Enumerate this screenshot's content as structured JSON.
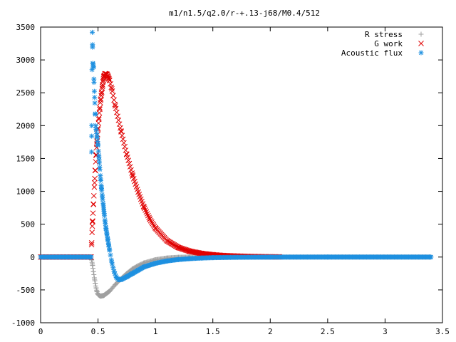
{
  "chart_data": {
    "type": "scatter",
    "title": "m1/n1.5/q2.0/r-+.13-j68/M0.4/512",
    "xlabel": "",
    "ylabel": "",
    "xlim": [
      0,
      3.5
    ],
    "ylim": [
      -1000,
      3500
    ],
    "x_ticks": [
      "0",
      "0.5",
      "1",
      "1.5",
      "2",
      "2.5",
      "3",
      "3.5"
    ],
    "y_ticks": [
      "-1000",
      "-500",
      "0",
      "500",
      "1000",
      "1500",
      "2000",
      "2500",
      "3000",
      "3500"
    ],
    "grid": false,
    "legend": "top-right",
    "series": [
      {
        "name": "R stress",
        "marker": "+",
        "color": "#a0a0a0",
        "x_range": [
          0,
          3.4
        ],
        "points": [
          [
            0,
            0
          ],
          [
            0.44,
            0
          ],
          [
            0.45,
            -100
          ],
          [
            0.46,
            -220
          ],
          [
            0.47,
            -340
          ],
          [
            0.48,
            -440
          ],
          [
            0.49,
            -520
          ],
          [
            0.5,
            -570
          ],
          [
            0.52,
            -595
          ],
          [
            0.55,
            -585
          ],
          [
            0.6,
            -520
          ],
          [
            0.65,
            -420
          ],
          [
            0.7,
            -330
          ],
          [
            0.75,
            -250
          ],
          [
            0.8,
            -180
          ],
          [
            0.85,
            -130
          ],
          [
            0.9,
            -90
          ],
          [
            1.0,
            -40
          ],
          [
            1.1,
            -15
          ],
          [
            1.2,
            -4
          ],
          [
            1.3,
            0
          ],
          [
            3.4,
            0
          ]
        ]
      },
      {
        "name": "G work",
        "marker": "x",
        "color": "#e00000",
        "x_range": [
          0,
          2.08
        ],
        "points": [
          [
            0,
            0
          ],
          [
            0.44,
            0
          ],
          [
            0.45,
            470
          ],
          [
            0.46,
            800
          ],
          [
            0.47,
            1130
          ],
          [
            0.48,
            1450
          ],
          [
            0.49,
            1720
          ],
          [
            0.5,
            1960
          ],
          [
            0.52,
            2350
          ],
          [
            0.54,
            2620
          ],
          [
            0.55,
            2740
          ],
          [
            0.56,
            2790
          ],
          [
            0.58,
            2780
          ],
          [
            0.6,
            2690
          ],
          [
            0.62,
            2560
          ],
          [
            0.65,
            2300
          ],
          [
            0.7,
            1920
          ],
          [
            0.75,
            1560
          ],
          [
            0.8,
            1250
          ],
          [
            0.85,
            990
          ],
          [
            0.9,
            760
          ],
          [
            0.95,
            580
          ],
          [
            1.0,
            440
          ],
          [
            1.1,
            250
          ],
          [
            1.2,
            145
          ],
          [
            1.3,
            88
          ],
          [
            1.4,
            55
          ],
          [
            1.5,
            35
          ],
          [
            1.6,
            22
          ],
          [
            1.8,
            10
          ],
          [
            2.0,
            4
          ],
          [
            2.08,
            3
          ]
        ]
      },
      {
        "name": "Acoustic flux",
        "marker": "*",
        "color": "#1e90e0",
        "x_range": [
          0,
          3.4
        ],
        "points": [
          [
            0,
            0
          ],
          [
            0.44,
            0
          ],
          [
            0.445,
            2000
          ],
          [
            0.45,
            3420
          ],
          [
            0.455,
            2950
          ],
          [
            0.46,
            2900
          ],
          [
            0.465,
            2660
          ],
          [
            0.47,
            2430
          ],
          [
            0.48,
            2000
          ],
          [
            0.5,
            1700
          ],
          [
            0.51,
            1480
          ],
          [
            0.52,
            1240
          ],
          [
            0.53,
            1050
          ],
          [
            0.54,
            880
          ],
          [
            0.55,
            730
          ],
          [
            0.56,
            560
          ],
          [
            0.57,
            430
          ],
          [
            0.58,
            320
          ],
          [
            0.6,
            110
          ],
          [
            0.62,
            -80
          ],
          [
            0.64,
            -220
          ],
          [
            0.66,
            -310
          ],
          [
            0.68,
            -345
          ],
          [
            0.7,
            -345
          ],
          [
            0.75,
            -300
          ],
          [
            0.8,
            -250
          ],
          [
            0.85,
            -200
          ],
          [
            0.9,
            -150
          ],
          [
            1.0,
            -95
          ],
          [
            1.1,
            -60
          ],
          [
            1.2,
            -38
          ],
          [
            1.3,
            -24
          ],
          [
            1.4,
            -15
          ],
          [
            1.5,
            -9
          ],
          [
            1.7,
            -4
          ],
          [
            2.0,
            -1
          ],
          [
            2.5,
            0
          ],
          [
            3.4,
            0
          ]
        ]
      }
    ]
  }
}
